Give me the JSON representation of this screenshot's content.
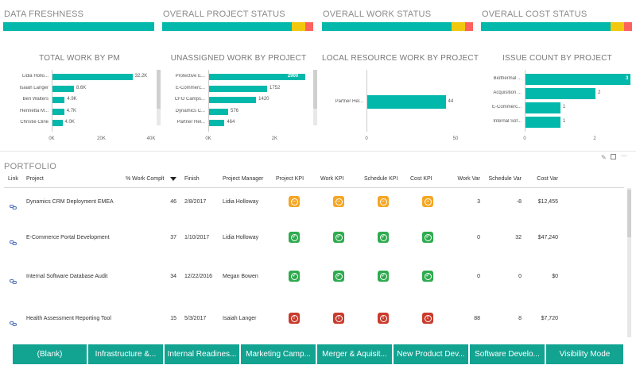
{
  "status_tiles": [
    {
      "title": "DATA FRESHNESS",
      "segments": [
        {
          "color": "#01b8aa",
          "pct": 100
        }
      ]
    },
    {
      "title": "OVERALL PROJECT STATUS",
      "segments": [
        {
          "color": "#01b8aa",
          "pct": 86
        },
        {
          "color": "#f2c80f",
          "pct": 9
        },
        {
          "color": "#fd625e",
          "pct": 5
        }
      ]
    },
    {
      "title": "OVERALL WORK STATUS",
      "segments": [
        {
          "color": "#01b8aa",
          "pct": 86
        },
        {
          "color": "#f2c80f",
          "pct": 9
        },
        {
          "color": "#fd625e",
          "pct": 5
        }
      ]
    },
    {
      "title": "OVERALL COST STATUS",
      "segments": [
        {
          "color": "#01b8aa",
          "pct": 86
        },
        {
          "color": "#f2c80f",
          "pct": 9
        },
        {
          "color": "#fd625e",
          "pct": 5
        }
      ]
    }
  ],
  "chart_data": [
    {
      "type": "bar",
      "orientation": "horizontal",
      "title": "TOTAL WORK BY PM",
      "categories": [
        "Lidia Hollo...",
        "Isaiah Langer",
        "Ben Walters",
        "Henrietta M...",
        "Christie Cline"
      ],
      "values": [
        32200,
        8600,
        4900,
        4700,
        4000
      ],
      "value_labels": [
        "32.2K",
        "8.6K",
        "4.9K",
        "4.7K",
        "4.0K"
      ],
      "xlim": [
        0,
        40000
      ],
      "ticks": [
        "0K",
        "20K",
        "40K"
      ],
      "bar_color": "#01b8aa"
    },
    {
      "type": "bar",
      "orientation": "horizontal",
      "title": "UNASSIGNED WORK BY PROJECT",
      "categories": [
        "Protective E...",
        "E-Commerc...",
        "CFO Camps...",
        "Dynamics C...",
        "Partner Hel..."
      ],
      "values": [
        2900,
        1752,
        1420,
        576,
        464
      ],
      "value_labels": [
        "2900",
        "1752",
        "1420",
        "576",
        "464"
      ],
      "xlim": [
        0,
        3000
      ],
      "ticks": [
        "0K",
        "2K"
      ],
      "bar_color": "#01b8aa"
    },
    {
      "type": "bar",
      "orientation": "horizontal",
      "title": "LOCAL RESOURCE WORK BY PROJECT",
      "categories": [
        "Partner Hel..."
      ],
      "values": [
        44
      ],
      "value_labels": [
        "44"
      ],
      "xlim": [
        0,
        50
      ],
      "ticks": [
        "0",
        "50"
      ],
      "bar_color": "#01b8aa"
    },
    {
      "type": "bar",
      "orientation": "horizontal",
      "title": "ISSUE COUNT BY PROJECT",
      "categories": [
        "Biothermal ...",
        "Acquisition ...",
        "E-Commerc...",
        "Internal Sof..."
      ],
      "values": [
        3,
        2,
        1,
        1
      ],
      "value_labels": [
        "3",
        "2",
        "1",
        "1"
      ],
      "xlim": [
        0,
        3
      ],
      "ticks": [
        "0",
        "2"
      ],
      "bar_color": "#01b8aa"
    }
  ],
  "portfolio": {
    "title": "PORTFOLIO",
    "columns": [
      "Link",
      "Project",
      "% Work Complt",
      "Finish",
      "Project Manager",
      "Project KPI",
      "Work KPI",
      "Schedule KPI",
      "Cost KPI",
      "Work Var",
      "Schedule Var",
      "Cost Var"
    ],
    "rows": [
      {
        "project": "Dynamics CRM Deployment EMEA",
        "pct": "46",
        "finish": "2/8/2017",
        "pm": "Lidia Holloway",
        "kpis": [
          "orange",
          "orange",
          "orange",
          "orange"
        ],
        "work_var": "3",
        "sched_var": "-8",
        "cost_var": "$12,455"
      },
      {
        "project": "E-Commerce  Portal Development",
        "pct": "37",
        "finish": "1/10/2017",
        "pm": "Lidia Holloway",
        "kpis": [
          "green",
          "green",
          "green",
          "green"
        ],
        "work_var": "0",
        "sched_var": "32",
        "cost_var": "$47,240"
      },
      {
        "project": "Internal Software Database Audit",
        "pct": "34",
        "finish": "12/22/2016",
        "pm": "Megan Bowen",
        "kpis": [
          "green",
          "green",
          "green",
          "green"
        ],
        "work_var": "0",
        "sched_var": "0",
        "cost_var": "$0"
      },
      {
        "project": "Health Assessment Reporting Tool",
        "pct": "15",
        "finish": "5/3/2017",
        "pm": "Isaiah Langer",
        "kpis": [
          "red",
          "red",
          "red",
          "red"
        ],
        "work_var": "88",
        "sched_var": "8",
        "cost_var": "$7,720"
      }
    ],
    "link_icon": "link-icon",
    "sort_icon": "sort-desc-icon"
  },
  "tabs": [
    "(Blank)",
    "Infrastructure &...",
    "Internal Readines...",
    "Marketing Camp...",
    "Merger & Aquisit...",
    "New Product Dev...",
    "Software Develo...",
    "Visibility Mode"
  ]
}
